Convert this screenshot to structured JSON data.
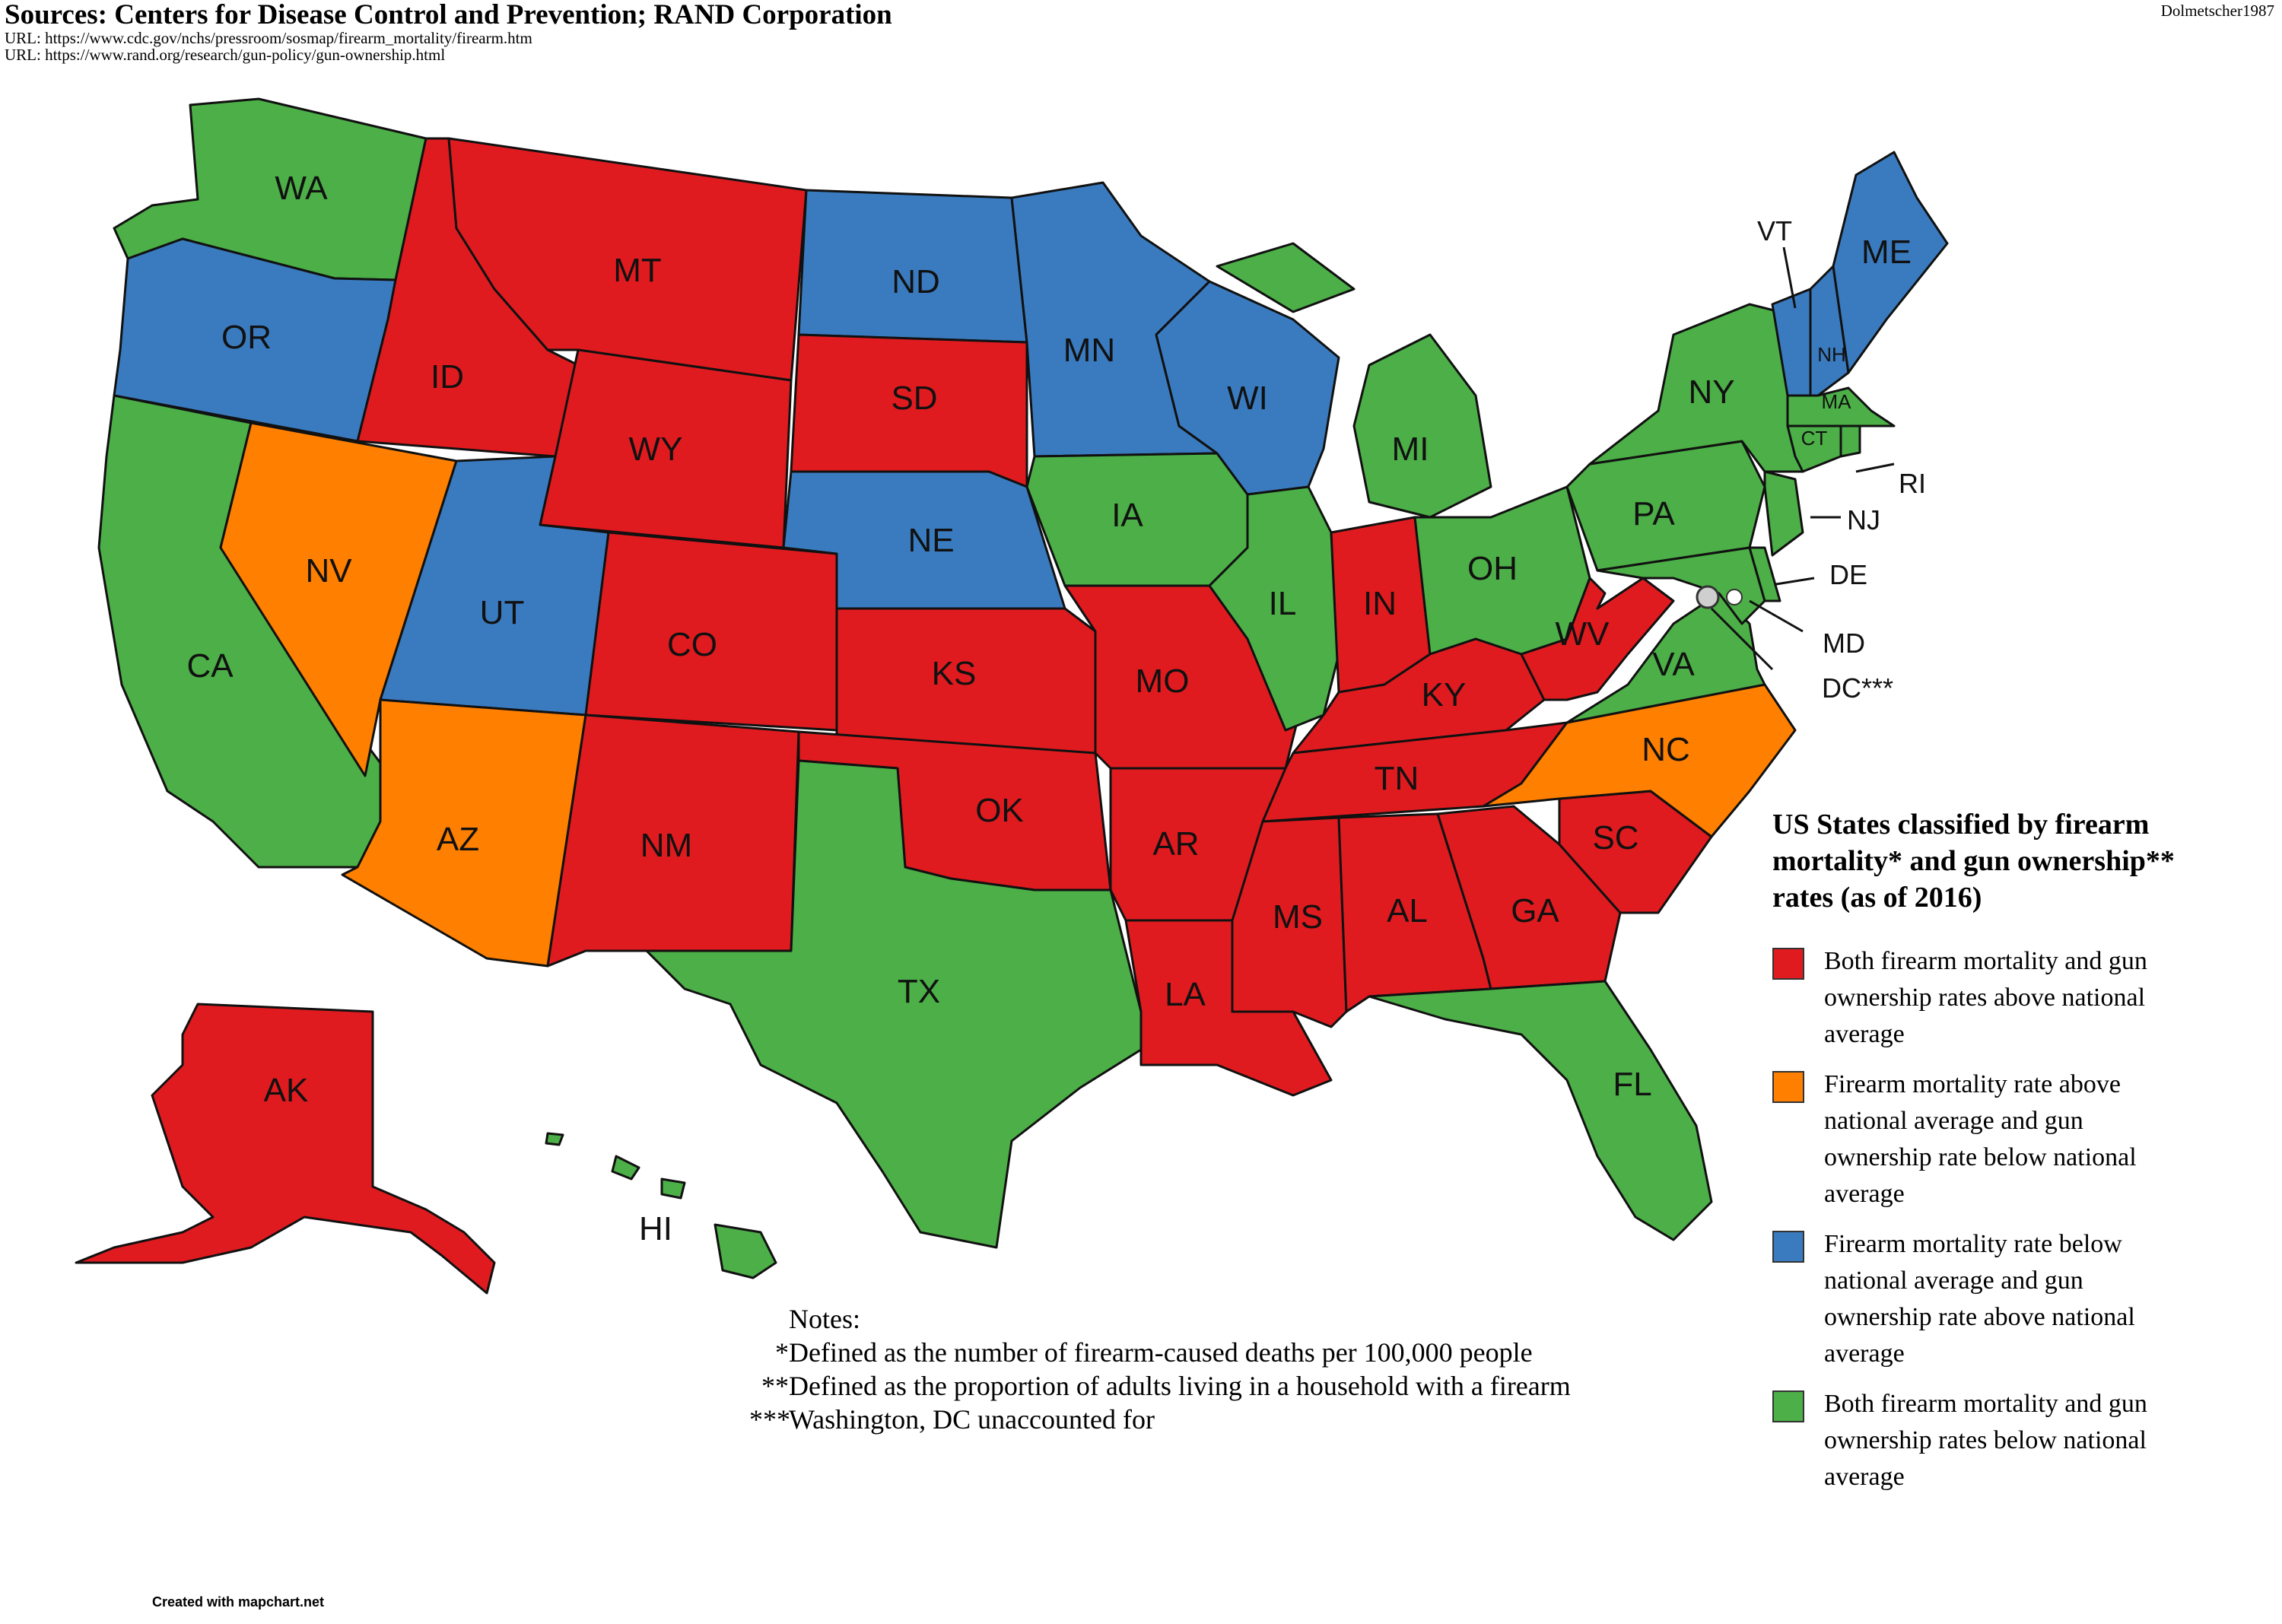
{
  "header": {
    "sources": "Sources: Centers for Disease Control and Prevention; RAND Corporation",
    "url_cdc": "URL: https://www.cdc.gov/nchs/pressroom/sosmap/firearm_mortality/firearm.htm",
    "url_rand": "URL: https://www.rand.org/research/gun-policy/gun-ownership.html",
    "author": "Dolmetscher1987"
  },
  "legend": {
    "title": "US States classified by firearm mortality* and gun ownership** rates (as of 2016)",
    "items": [
      {
        "label": "Both firearm mortality and gun ownership rates above national average",
        "color": "#e01b1f"
      },
      {
        "label": "Firearm mortality rate above national average and gun ownership rate below national average",
        "color": "#ff7f00"
      },
      {
        "label": "Firearm mortality rate below national average and gun ownership rate above national average",
        "color": "#3a7bbf"
      },
      {
        "label": "Both firearm mortality and gun ownership rates below national average",
        "color": "#4caf47"
      }
    ]
  },
  "notes": {
    "heading": "Notes:",
    "items": [
      {
        "mark": "*",
        "text": "Defined as the number of firearm-caused deaths per 100,000 people"
      },
      {
        "mark": "**",
        "text": "Defined as the proportion of adults living in a household with a firearm"
      },
      {
        "mark": "***",
        "text": "Washington, DC unaccounted for"
      }
    ]
  },
  "credit": "Created with mapchart.net",
  "states": {
    "WA": "green",
    "OR": "blue",
    "CA": "green",
    "NV": "orange",
    "ID": "red",
    "MT": "red",
    "WY": "red",
    "UT": "blue",
    "AZ": "orange",
    "CO": "red",
    "NM": "red",
    "ND": "blue",
    "SD": "red",
    "NE": "blue",
    "KS": "red",
    "OK": "red",
    "TX": "green",
    "MN": "blue",
    "IA": "green",
    "MO": "red",
    "AR": "red",
    "LA": "red",
    "WI": "blue",
    "IL": "green",
    "MI": "green",
    "IN": "red",
    "OH": "green",
    "KY": "red",
    "TN": "red",
    "MS": "red",
    "AL": "red",
    "GA": "red",
    "FL": "green",
    "SC": "red",
    "NC": "orange",
    "VA": "green",
    "WV": "red",
    "PA": "green",
    "NY": "green",
    "VT": "blue",
    "NH": "blue",
    "ME": "blue",
    "MA": "green",
    "RI": "green",
    "CT": "green",
    "NJ": "green",
    "DE": "green",
    "MD": "green",
    "AK": "red",
    "HI": "green"
  },
  "dc_label": "DC***"
}
